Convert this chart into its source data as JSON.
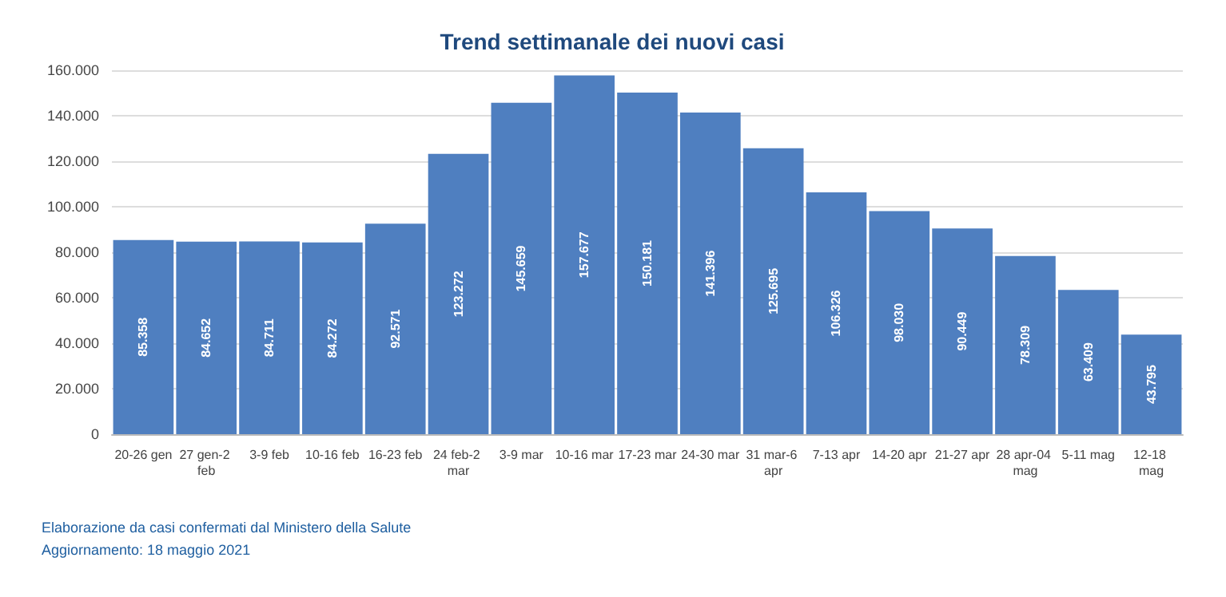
{
  "chart_data": {
    "type": "bar",
    "title": "Trend settimanale dei nuovi casi",
    "categories": [
      "20-26 gen",
      "27 gen-2 feb",
      "3-9 feb",
      "10-16 feb",
      "16-23 feb",
      "24 feb-2 mar",
      "3-9 mar",
      "10-16 mar",
      "17-23 mar",
      "24-30 mar",
      "31 mar-6 apr",
      "7-13 apr",
      "14-20 apr",
      "21-27 apr",
      "28 apr-04 mag",
      "5-11 mag",
      "12-18 mag"
    ],
    "values": [
      85358,
      84652,
      84711,
      84272,
      92571,
      123272,
      145659,
      157677,
      150181,
      141396,
      125695,
      106326,
      98030,
      90449,
      78309,
      63409,
      43795
    ],
    "value_labels": [
      "85.358",
      "84.652",
      "84.711",
      "84.272",
      "92.571",
      "123.272",
      "145.659",
      "157.677",
      "150.181",
      "141.396",
      "125.695",
      "106.326",
      "98.030",
      "90.449",
      "78.309",
      "63.409",
      "43.795"
    ],
    "color": "#4f7fc0",
    "ylim": [
      0,
      160000
    ],
    "yticks": [
      0,
      {
        "value": 20000,
        "label": "20.000"
      },
      {
        "value": 40000,
        "label": "40.000"
      },
      {
        "value": 60000,
        "label": "60.000"
      },
      {
        "value": 80000,
        "label": "80.000"
      },
      {
        "value": 100000,
        "label": "100.000"
      },
      {
        "value": 120000,
        "label": "120.000"
      },
      {
        "value": 140000,
        "label": "140.000"
      },
      {
        "value": 160000,
        "label": "160.000"
      }
    ],
    "grid": "y",
    "annotations": [
      "Elaborazione da casi confermati dal Ministero della Salute",
      "Aggiornamento: 18 maggio 2021"
    ]
  }
}
